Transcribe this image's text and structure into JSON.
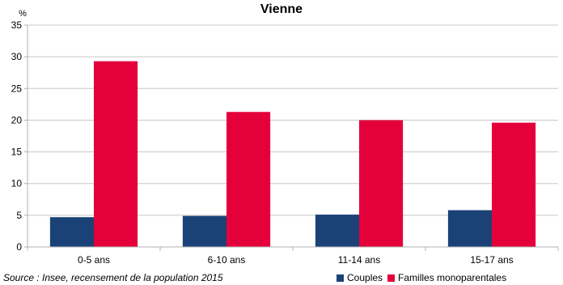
{
  "chart_data": {
    "type": "bar",
    "title": "Vienne",
    "ylabel": "%",
    "xlabel": "",
    "ylim": [
      0,
      35
    ],
    "yticks": [
      0,
      5,
      10,
      15,
      20,
      25,
      30,
      35
    ],
    "grid": true,
    "categories": [
      "0-5 ans",
      "6-10 ans",
      "11-14 ans",
      "15-17 ans"
    ],
    "series": [
      {
        "name": "Couples",
        "color": "#1a4277",
        "values": [
          4.7,
          4.9,
          5.1,
          5.8
        ]
      },
      {
        "name": "Familles monoparentales",
        "color": "#e4003a",
        "values": [
          29.3,
          21.3,
          20.0,
          19.6
        ]
      }
    ],
    "legend_position": "bottom-right"
  },
  "source": "Source : Insee, recensement de la population 2015"
}
